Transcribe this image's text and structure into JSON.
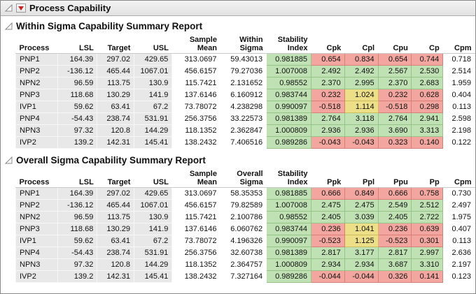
{
  "window": {
    "title": "Process Capability"
  },
  "colors": {
    "green": "#bfe1b4",
    "green_border": "#96c487",
    "yellow": "#ecdf88",
    "yellow_border": "#cdbd5e",
    "red": "#f2a69f",
    "red_border": "#d87f77",
    "shaded": "#e8e8e8",
    "red_triangle": "#cc2222"
  },
  "color_rules": {
    "red_below": 1.0,
    "yellow_below": 1.33
  },
  "sections": [
    {
      "title": "Within Sigma Capability Summary Report",
      "columns": [
        "Process",
        "LSL",
        "Target",
        "USL",
        "Sample Mean",
        "Within\nSigma",
        "Stability\nIndex",
        "Cpk",
        "Cpl",
        "Cpu",
        "Cp",
        "Cpm"
      ],
      "rows": [
        [
          "PNP1",
          "164.39",
          "297.02",
          "429.65",
          "313.0697",
          "59.43013",
          "0.981885",
          "0.654",
          "0.834",
          "0.654",
          "0.744",
          "0.718"
        ],
        [
          "PNP2",
          "-136.12",
          "465.44",
          "1067.01",
          "456.6157",
          "79.27036",
          "1.007008",
          "2.492",
          "2.492",
          "2.567",
          "2.530",
          "2.514"
        ],
        [
          "NPN2",
          "96.59",
          "113.75",
          "130.9",
          "115.7421",
          "2.131652",
          "0.98552",
          "2.370",
          "2.995",
          "2.370",
          "2.683",
          "1.959"
        ],
        [
          "PNP3",
          "118.68",
          "130.29",
          "141.9",
          "137.6146",
          "6.160912",
          "0.983744",
          "0.232",
          "1.024",
          "0.232",
          "0.628",
          "0.404"
        ],
        [
          "IVP1",
          "59.62",
          "63.41",
          "67.2",
          "73.78072",
          "4.238298",
          "0.990097",
          "-0.518",
          "1.114",
          "-0.518",
          "0.298",
          "0.113"
        ],
        [
          "PNP4",
          "-54.43",
          "238.74",
          "531.91",
          "256.3756",
          "33.22573",
          "0.981389",
          "2.764",
          "3.118",
          "2.764",
          "2.941",
          "2.598"
        ],
        [
          "NPN3",
          "97.32",
          "120.8",
          "144.29",
          "118.1352",
          "2.362847",
          "1.000809",
          "2.936",
          "2.936",
          "3.690",
          "3.313",
          "2.198"
        ],
        [
          "IVP2",
          "139.2",
          "142.31",
          "145.41",
          "138.2432",
          "7.406516",
          "0.989286",
          "-0.043",
          "-0.043",
          "0.323",
          "0.140",
          "0.122"
        ]
      ]
    },
    {
      "title": "Overall Sigma Capability Summary Report",
      "columns": [
        "Process",
        "LSL",
        "Target",
        "USL",
        "Sample Mean",
        "Overall\nSigma",
        "Stability\nIndex",
        "Ppk",
        "Ppl",
        "Ppu",
        "Pp",
        "Cpm"
      ],
      "rows": [
        [
          "PNP1",
          "164.39",
          "297.02",
          "429.65",
          "313.0697",
          "58.35353",
          "0.981885",
          "0.666",
          "0.849",
          "0.666",
          "0.758",
          "0.730"
        ],
        [
          "PNP2",
          "-136.12",
          "465.44",
          "1067.01",
          "456.6157",
          "79.82589",
          "1.007008",
          "2.475",
          "2.475",
          "2.549",
          "2.512",
          "2.497"
        ],
        [
          "NPN2",
          "96.59",
          "113.75",
          "130.9",
          "115.7421",
          "2.100786",
          "0.98552",
          "2.405",
          "3.039",
          "2.405",
          "2.722",
          "1.975"
        ],
        [
          "PNP3",
          "118.68",
          "130.29",
          "141.9",
          "137.6146",
          "6.060762",
          "0.983744",
          "0.236",
          "1.041",
          "0.236",
          "0.639",
          "0.407"
        ],
        [
          "IVP1",
          "59.62",
          "63.41",
          "67.2",
          "73.78072",
          "4.196326",
          "0.990097",
          "-0.523",
          "1.125",
          "-0.523",
          "0.301",
          "0.113"
        ],
        [
          "PNP4",
          "-54.43",
          "238.74",
          "531.91",
          "256.3756",
          "32.60738",
          "0.981389",
          "2.817",
          "3.177",
          "2.817",
          "2.997",
          "2.636"
        ],
        [
          "NPN3",
          "97.32",
          "120.8",
          "144.29",
          "118.1352",
          "2.364757",
          "1.000809",
          "2.934",
          "2.934",
          "3.687",
          "3.310",
          "2.197"
        ],
        [
          "IVP2",
          "139.2",
          "142.31",
          "145.41",
          "138.2432",
          "7.327164",
          "0.989286",
          "-0.044",
          "-0.044",
          "0.326",
          "0.141",
          "0.123"
        ]
      ]
    }
  ]
}
